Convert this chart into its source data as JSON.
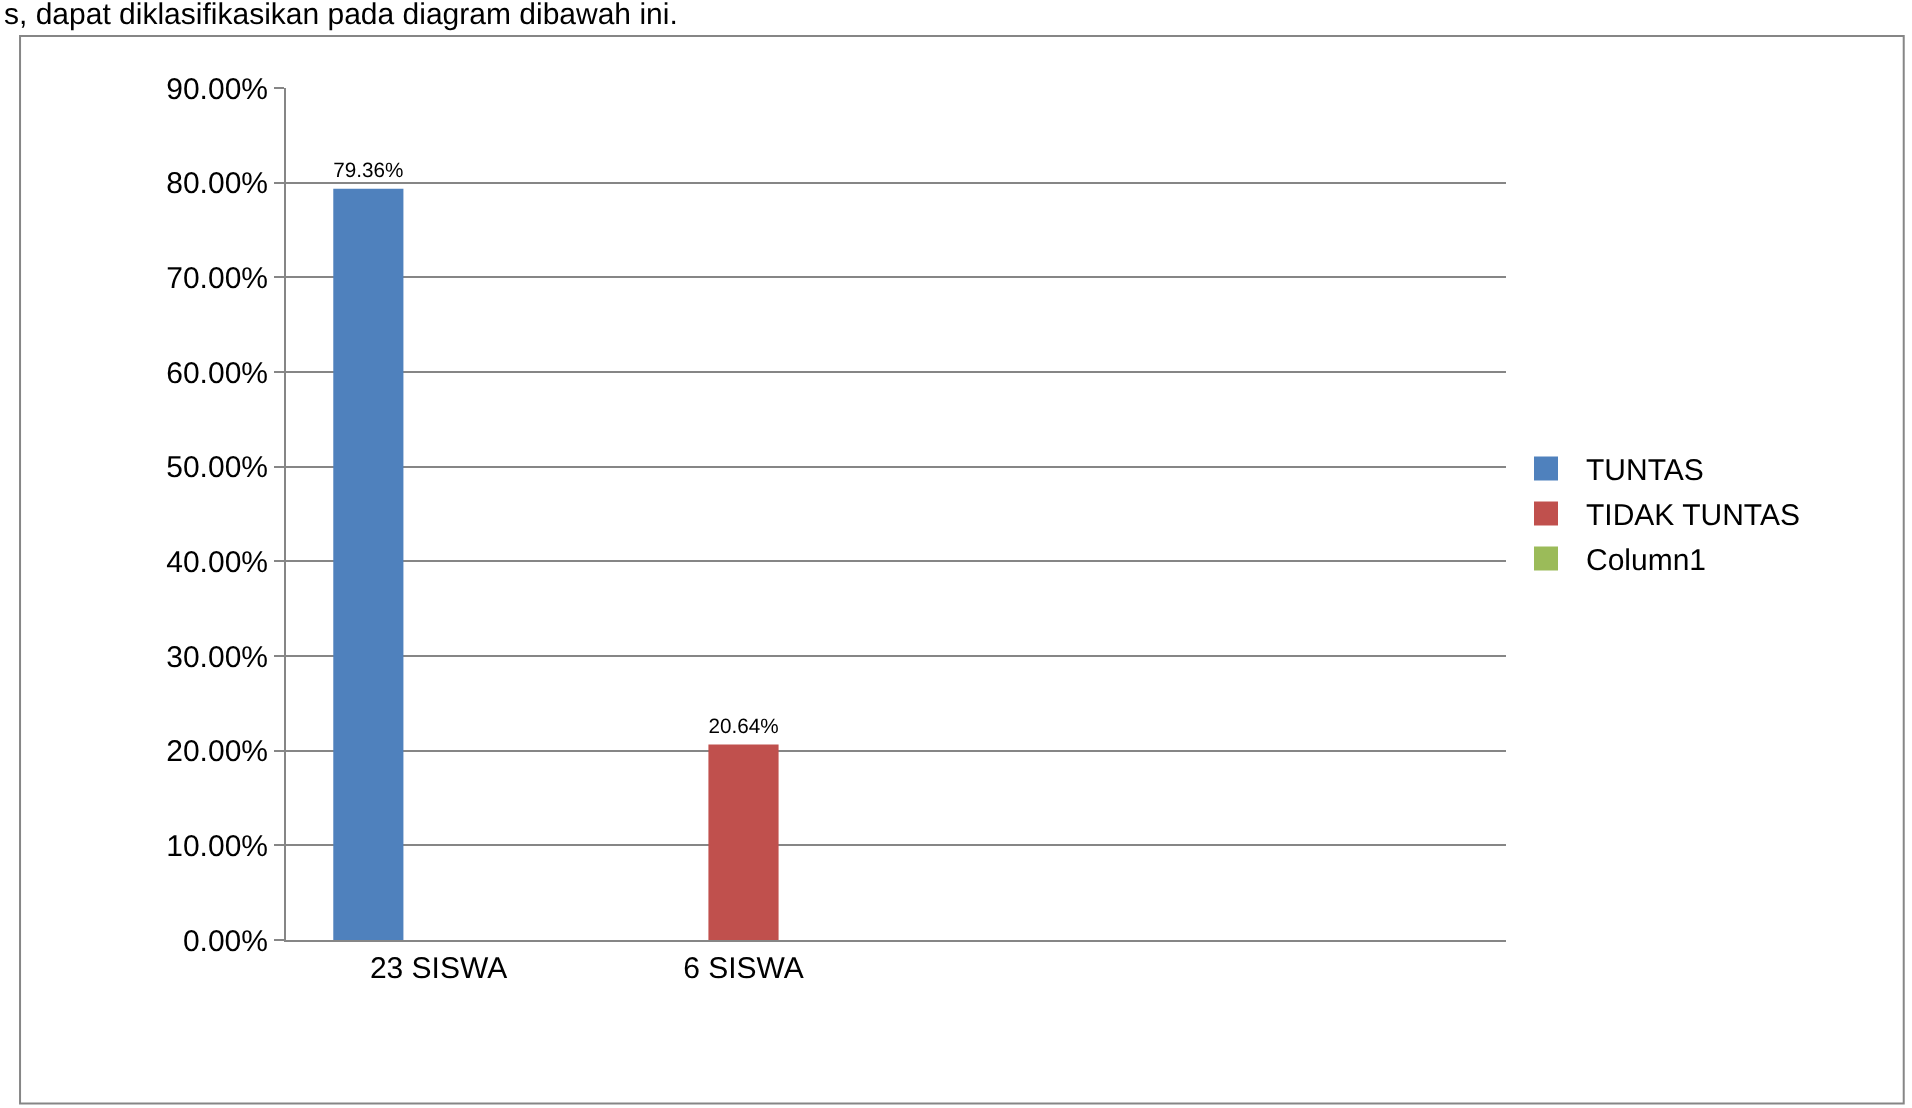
{
  "chart_data": {
    "type": "bar",
    "categories": [
      "23 SISWA",
      "6 SISWA",
      null,
      null
    ],
    "series": [
      {
        "name": "TUNTAS",
        "color": "#4f81bd",
        "values": [
          79.36,
          null,
          null,
          null
        ],
        "value_labels": [
          "79.36%",
          null,
          null,
          null
        ]
      },
      {
        "name": "TIDAK TUNTAS",
        "color": "#c0504d",
        "values": [
          null,
          20.64,
          null,
          null
        ],
        "value_labels": [
          null,
          "20.64%",
          null,
          null
        ]
      },
      {
        "name": "Column1",
        "color": "#9bbb59",
        "values": [
          null,
          null,
          null,
          null
        ]
      }
    ],
    "ylim": [
      0,
      90
    ],
    "yticks": [
      {
        "value": 0,
        "label": "0.00%"
      },
      {
        "value": 10,
        "label": "10.00%"
      },
      {
        "value": 20,
        "label": "20.00%"
      },
      {
        "value": 30,
        "label": "30.00%"
      },
      {
        "value": 40,
        "label": "40.00%"
      },
      {
        "value": 50,
        "label": "50.00%"
      },
      {
        "value": 60,
        "label": "60.00%"
      },
      {
        "value": 70,
        "label": "70.00%"
      },
      {
        "value": 80,
        "label": "80.00%"
      },
      {
        "value": 90,
        "label": "90.00%"
      }
    ],
    "grid": "y",
    "legend": "right",
    "annotations": [
      "s, dapat diklasifikasikan pada diagram dibawah ini."
    ]
  }
}
